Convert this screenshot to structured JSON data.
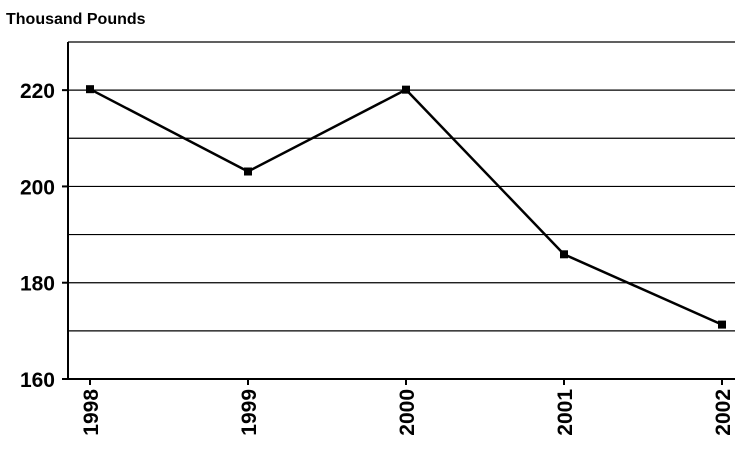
{
  "chart_data": {
    "type": "line",
    "title": "",
    "ylabel": "Thousand Pounds",
    "xlabel": "",
    "categories": [
      "1998",
      "1999",
      "2000",
      "2001",
      "2002"
    ],
    "series": [
      {
        "values": [
          220.2,
          203.1,
          220.1,
          185.9,
          171.3
        ]
      }
    ],
    "ylim": [
      160,
      230
    ],
    "yticks": [
      160,
      180,
      200,
      220
    ],
    "gridlines": [
      170,
      180,
      190,
      200,
      210,
      220,
      230
    ],
    "grid": true,
    "legend": "none",
    "line_color": "#000000",
    "marker": "square"
  }
}
